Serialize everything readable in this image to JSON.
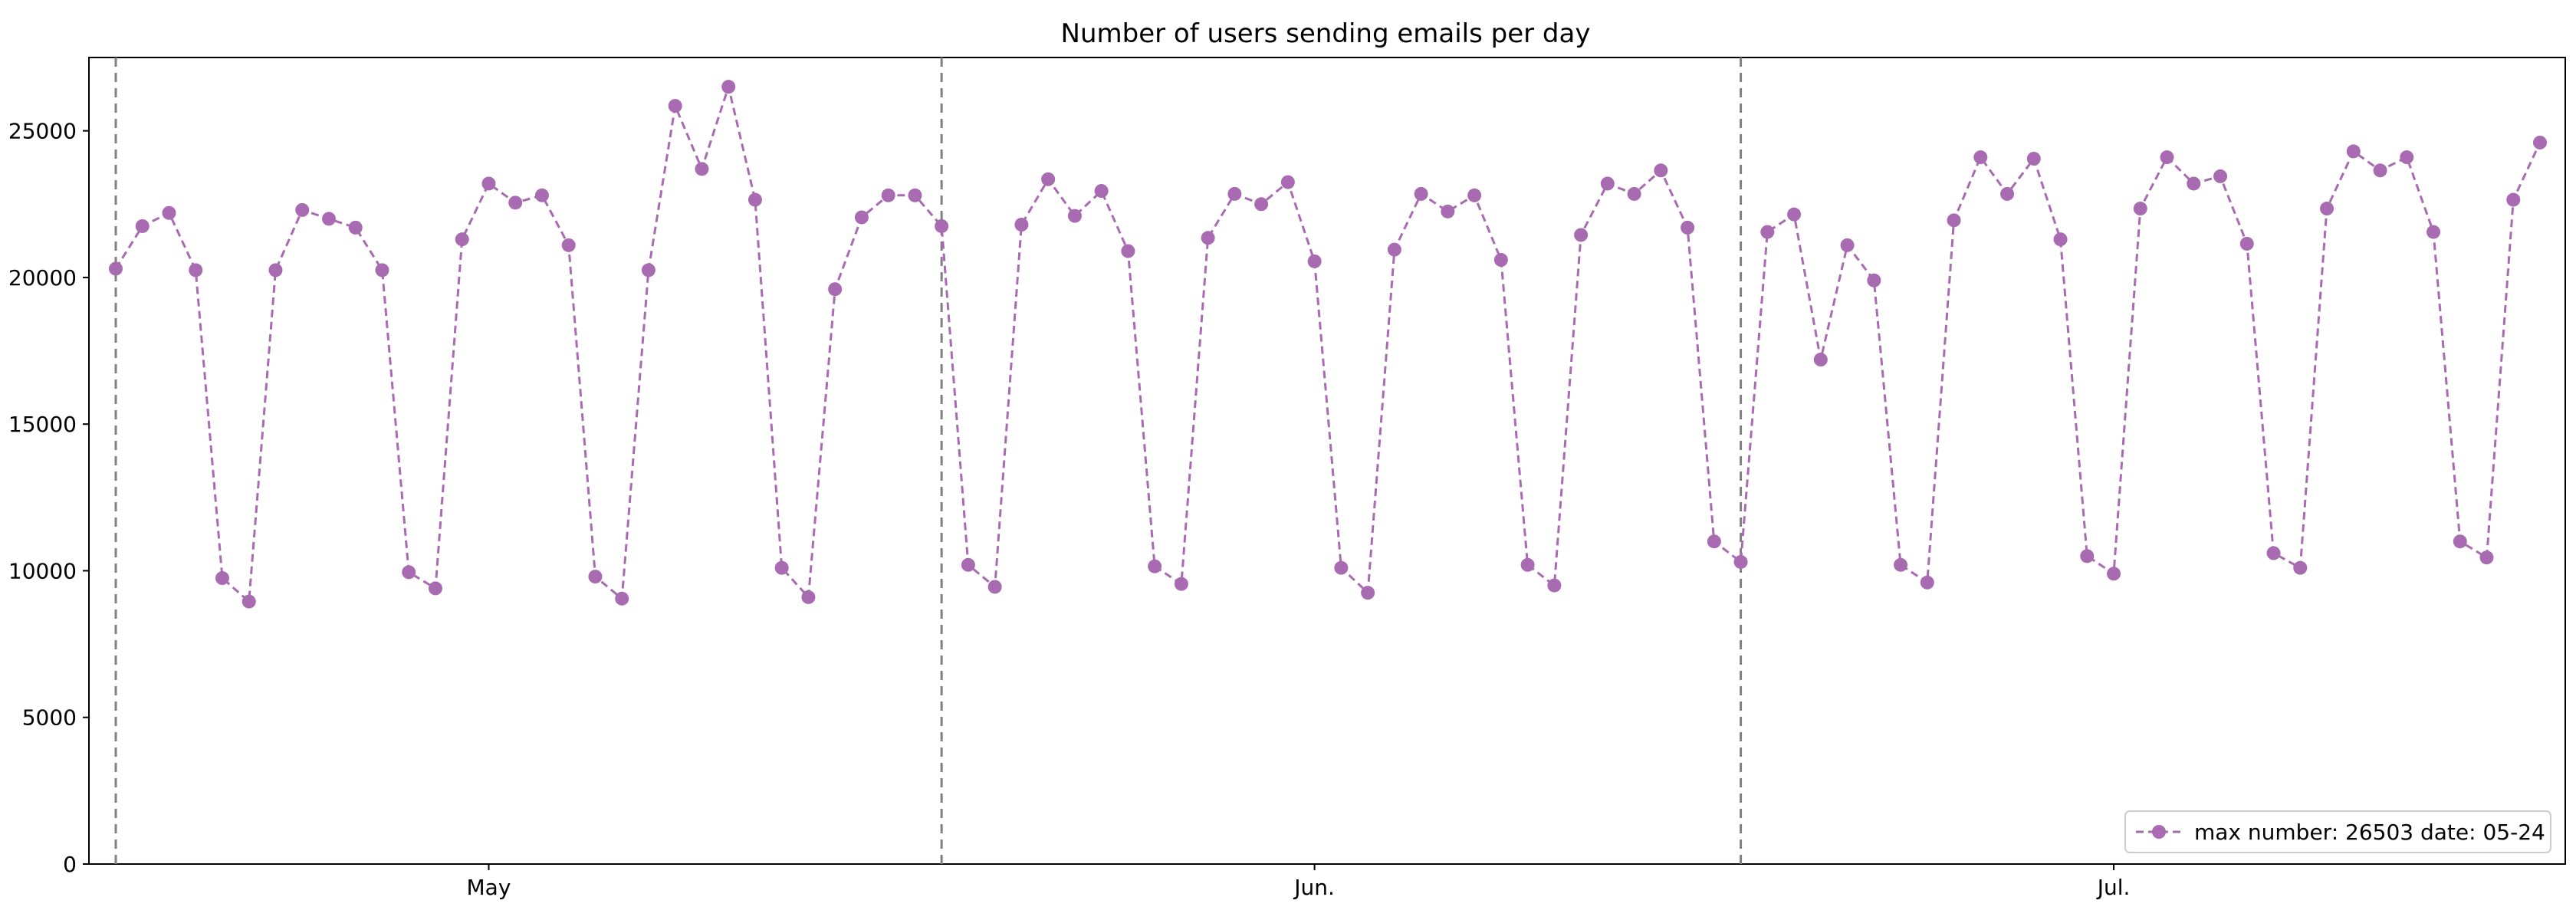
{
  "chart_data": {
    "type": "line",
    "title": "Number of users sending emails per day",
    "xlabel": "",
    "ylabel": "",
    "ylim": [
      0,
      27500
    ],
    "y_ticks": [
      0,
      5000,
      10000,
      15000,
      20000,
      25000
    ],
    "x_tick_labels": [
      "May",
      "Jun.",
      "Jul."
    ],
    "month_boundaries": [
      "May",
      "Jun.",
      "Jul."
    ],
    "grid": false,
    "legend_position": "lower-right",
    "series": [
      {
        "name": "max number: 26503 date: 05-24",
        "color": "#a86bb1",
        "line_style": "dashed",
        "marker": "circle",
        "values": [
          20300,
          21750,
          22200,
          20250,
          9750,
          8950,
          20250,
          22300,
          22000,
          21700,
          20250,
          9950,
          9400,
          21300,
          23200,
          22550,
          22800,
          21100,
          9800,
          9050,
          20250,
          25850,
          23700,
          26503,
          22650,
          10100,
          9100,
          19600,
          22050,
          22800,
          22800,
          21750,
          10200,
          9450,
          21800,
          23350,
          22100,
          22950,
          20900,
          10150,
          9550,
          21350,
          22850,
          22500,
          23250,
          20550,
          10100,
          9250,
          20950,
          22850,
          22250,
          22800,
          20600,
          10200,
          9500,
          21450,
          23200,
          22850,
          23650,
          21700,
          11000,
          10300,
          21550,
          22150,
          17200,
          21100,
          19900,
          10200,
          9600,
          21950,
          24100,
          22850,
          24050,
          21300,
          10500,
          9900,
          22350,
          24100,
          23200,
          23450,
          21150,
          10600,
          10100,
          22350,
          24300,
          23650,
          24100,
          21550,
          11000,
          10450,
          22650,
          24600
        ]
      }
    ]
  }
}
